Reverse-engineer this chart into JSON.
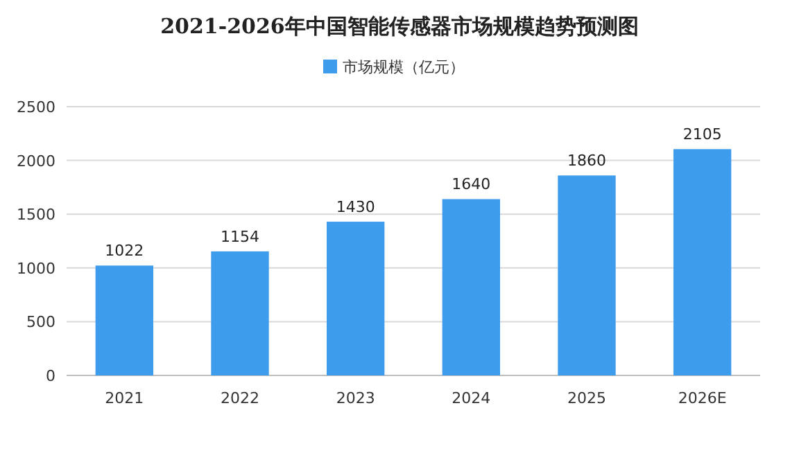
{
  "chart_data": {
    "type": "bar",
    "title": "2021-2026年中国智能传感器市场规模趋势预测图",
    "categories": [
      "2021",
      "2022",
      "2023",
      "2024",
      "2025",
      "2026E"
    ],
    "series": [
      {
        "name": "市场规模（亿元）",
        "color": "#3e9cec",
        "values": [
          1022,
          1154,
          1430,
          1640,
          1860,
          2105
        ]
      }
    ],
    "ylim": [
      0,
      2500
    ],
    "yticks": [
      0,
      500,
      1000,
      1500,
      2000,
      2500
    ],
    "grid": "y",
    "legend": "top",
    "data_labels": true
  }
}
